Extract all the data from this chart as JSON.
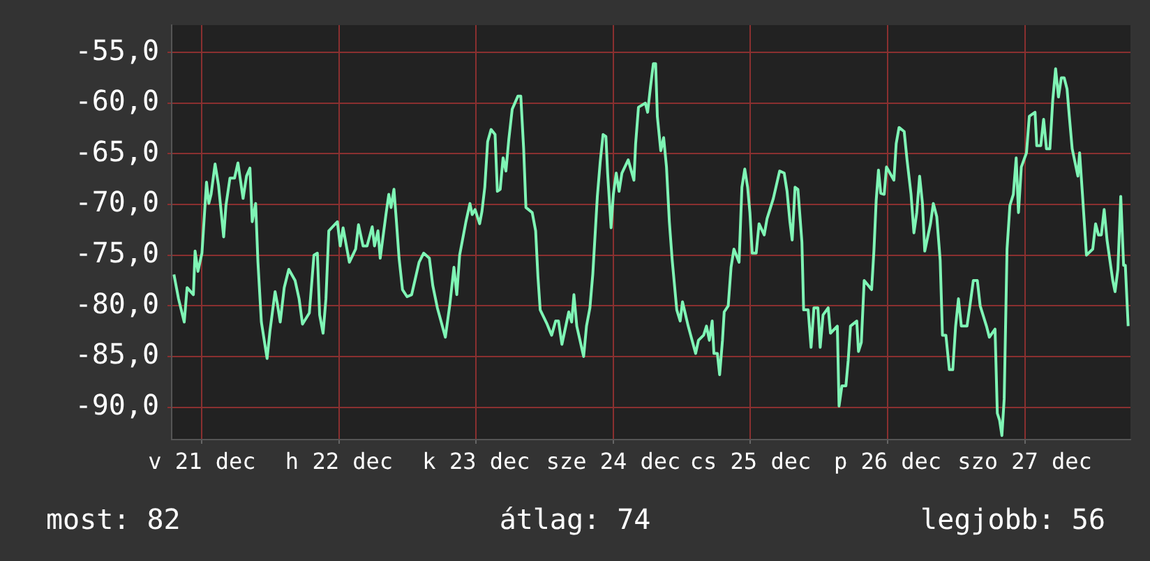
{
  "chart_data": {
    "type": "line",
    "xlim": [
      "--12-21T06:42",
      "--12-28T06:30"
    ],
    "ylim": [
      -93.2,
      -52.3
    ],
    "xticks": [
      {
        "value": "--12-21T12:00",
        "label": "v 21 dec"
      },
      {
        "value": "--12-22T12:00",
        "label": "h 22 dec"
      },
      {
        "value": "--12-23T12:00",
        "label": "k 23 dec"
      },
      {
        "value": "--12-24T12:00",
        "label": "sze 24 dec"
      },
      {
        "value": "--12-25T12:00",
        "label": "cs 25 dec"
      },
      {
        "value": "--12-26T12:00",
        "label": "p 26 dec"
      },
      {
        "value": "--12-27T12:00",
        "label": "szo 27 dec"
      }
    ],
    "yticks": [
      {
        "value": -90,
        "label": "-90,0"
      },
      {
        "value": -85,
        "label": "-85,0"
      },
      {
        "value": -80,
        "label": "-80,0"
      },
      {
        "value": -75,
        "label": "-75,0"
      },
      {
        "value": -70,
        "label": "-70,0"
      },
      {
        "value": -65,
        "label": "-65,0"
      },
      {
        "value": -60,
        "label": "-60,0"
      },
      {
        "value": -55,
        "label": "-55,0"
      }
    ],
    "grid": true,
    "legend": false,
    "marker": "none",
    "line_style": "solid",
    "annotations": [
      "most: 82",
      "átlag: 74",
      "legjobb: 56"
    ],
    "series": [
      {
        "color": "#7ff5b5",
        "x": [
          "--12-21T07:06",
          "--12-21T07:54",
          "--12-21T08:54",
          "--12-21T09:24",
          "--12-21T10:30",
          "--12-21T10:48",
          "--12-21T11:18",
          "--12-21T12:00",
          "--12-21T12:48",
          "--12-21T13:12",
          "--12-21T13:36",
          "--12-21T14:18",
          "--12-21T14:54",
          "--12-21T15:48",
          "--12-21T16:12",
          "--12-21T16:54",
          "--12-21T17:42",
          "--12-21T18:18",
          "--12-21T19:12",
          "--12-21T19:48",
          "--12-21T20:24",
          "--12-21T20:48",
          "--12-21T21:24",
          "--12-21T21:48",
          "--12-21T22:24",
          "--12-21T23:24",
          "--12-21T23:54",
          "--12-22T00:48",
          "--12-22T01:12",
          "--12-22T01:42",
          "--12-22T02:24",
          "--12-22T03:12",
          "--12-22T04:18",
          "--12-22T05:00",
          "--12-22T05:36",
          "--12-22T06:48",
          "--12-22T07:36",
          "--12-22T08:12",
          "--12-22T08:36",
          "--12-22T09:12",
          "--12-22T09:42",
          "--12-22T10:12",
          "--12-22T11:42",
          "--12-22T12:12",
          "--12-22T12:42",
          "--12-22T13:48",
          "--12-22T14:54",
          "--12-22T15:24",
          "--12-22T16:12",
          "--12-22T16:54",
          "--12-22T17:48",
          "--12-22T18:12",
          "--12-22T18:48",
          "--12-22T19:12",
          "--12-22T20:12",
          "--12-22T20:42",
          "--12-22T21:06",
          "--12-22T21:36",
          "--12-22T22:00",
          "--12-22T22:30",
          "--12-22T23:06",
          "--12-22T23:54",
          "--12-23T00:42",
          "--12-23T02:00",
          "--12-23T02:48",
          "--12-23T03:48",
          "--12-23T04:24",
          "--12-23T05:12",
          "--12-23T06:36",
          "--12-23T07:24",
          "--12-23T08:06",
          "--12-23T08:36",
          "--12-23T09:06",
          "--12-23T10:12",
          "--12-23T10:54",
          "--12-23T11:18",
          "--12-23T11:48",
          "--12-23T12:36",
          "--12-23T13:00",
          "--12-23T13:30",
          "--12-23T14:00",
          "--12-23T14:36",
          "--12-23T15:18",
          "--12-23T15:42",
          "--12-23T16:12",
          "--12-23T16:42",
          "--12-23T17:12",
          "--12-23T17:42",
          "--12-23T18:18",
          "--12-23T19:18",
          "--12-23T19:48",
          "--12-23T20:18",
          "--12-23T20:42",
          "--12-23T21:48",
          "--12-23T22:24",
          "--12-23T22:48",
          "--12-23T23:12",
          "--12-24T00:24",
          "--12-24T01:12",
          "--12-24T01:54",
          "--12-24T02:24",
          "--12-24T03:00",
          "--12-24T04:12",
          "--12-24T04:42",
          "--12-24T05:06",
          "--12-24T05:36",
          "--12-24T06:48",
          "--12-24T07:18",
          "--12-24T07:54",
          "--12-24T08:24",
          "--12-24T09:12",
          "--12-24T09:42",
          "--12-24T10:12",
          "--12-24T10:42",
          "--12-24T11:00",
          "--12-24T11:36",
          "--12-24T12:00",
          "--12-24T12:30",
          "--12-24T13:00",
          "--12-24T13:30",
          "--12-24T14:36",
          "--12-24T15:36",
          "--12-24T15:54",
          "--12-24T16:24",
          "--12-24T17:36",
          "--12-24T18:00",
          "--12-24T18:30",
          "--12-24T19:00",
          "--12-24T19:24",
          "--12-24T19:42",
          "--12-24T20:18",
          "--12-24T20:48",
          "--12-24T21:18",
          "--12-24T21:48",
          "--12-24T22:18",
          "--12-24T23:06",
          "--12-24T23:42",
          "--12-25T00:06",
          "--12-25T01:06",
          "--12-25T02:24",
          "--12-25T02:54",
          "--12-25T03:48",
          "--12-25T04:18",
          "--12-25T04:48",
          "--12-25T05:18",
          "--12-25T05:36",
          "--12-25T06:12",
          "--12-25T06:36",
          "--12-25T07:06",
          "--12-25T07:24",
          "--12-25T08:06",
          "--12-25T08:36",
          "--12-25T09:06",
          "--12-25T10:00",
          "--12-25T10:30",
          "--12-25T11:00",
          "--12-25T11:30",
          "--12-25T11:54",
          "--12-25T12:18",
          "--12-25T13:00",
          "--12-25T13:30",
          "--12-25T14:24",
          "--12-25T14:54",
          "--12-25T16:00",
          "--12-25T17:06",
          "--12-25T17:54",
          "--12-25T18:24",
          "--12-25T18:54",
          "--12-25T19:18",
          "--12-25T19:48",
          "--12-25T20:18",
          "--12-25T21:00",
          "--12-25T21:18",
          "--12-25T22:06",
          "--12-25T22:36",
          "--12-25T23:06",
          "--12-25T23:48",
          "--12-26T00:12",
          "--12-26T00:42",
          "--12-26T01:36",
          "--12-26T02:00",
          "--12-26T03:12",
          "--12-26T03:30",
          "--12-26T04:00",
          "--12-26T04:42",
          "--12-26T05:06",
          "--12-26T05:30",
          "--12-26T06:36",
          "--12-26T06:54",
          "--12-26T07:24",
          "--12-26T07:54",
          "--12-26T09:12",
          "--12-26T09:36",
          "--12-26T10:00",
          "--12-26T10:24",
          "--12-26T10:48",
          "--12-26T11:24",
          "--12-26T11:48",
          "--12-26T13:06",
          "--12-26T13:30",
          "--12-26T14:00",
          "--12-26T14:54",
          "--12-26T15:24",
          "--12-26T16:06",
          "--12-26T16:36",
          "--12-26T17:06",
          "--12-26T17:36",
          "--12-26T18:06",
          "--12-26T18:30",
          "--12-26T19:30",
          "--12-26T20:00",
          "--12-26T20:36",
          "--12-26T21:12",
          "--12-26T21:36",
          "--12-26T22:12",
          "--12-26T22:48",
          "--12-26T23:24",
          "--12-26T23:54",
          "--12-27T00:24",
          "--12-27T00:54",
          "--12-27T01:54",
          "--12-27T02:30",
          "--12-27T03:00",
          "--12-27T03:42",
          "--12-27T04:12",
          "--12-27T05:18",
          "--12-27T05:48",
          "--12-27T06:48",
          "--12-27T07:12",
          "--12-27T07:36",
          "--12-27T08:00",
          "--12-27T08:24",
          "--12-27T08:54",
          "--12-27T09:24",
          "--12-27T10:00",
          "--12-27T10:30",
          "--12-27T10:54",
          "--12-27T11:24",
          "--12-27T12:18",
          "--12-27T12:48",
          "--12-27T13:48",
          "--12-27T14:06",
          "--12-27T14:48",
          "--12-27T15:18",
          "--12-27T15:48",
          "--12-27T16:24",
          "--12-27T16:54",
          "--12-27T17:24",
          "--12-27T17:54",
          "--12-27T18:24",
          "--12-27T18:54",
          "--12-27T19:24",
          "--12-27T19:48",
          "--12-27T20:18",
          "--12-27T21:18",
          "--12-27T21:36",
          "--12-27T22:06",
          "--12-27T22:48",
          "--12-27T23:54",
          "--12-28T00:24",
          "--12-28T00:54",
          "--12-28T01:24",
          "--12-28T01:54",
          "--12-28T02:24",
          "--12-28T03:24",
          "--12-28T03:48",
          "--12-28T04:18",
          "--12-28T04:48",
          "--12-28T05:18",
          "--12-28T05:36",
          "--12-28T06:06"
        ],
        "values": [
          -76.9,
          -79.3,
          -81.6,
          -78.2,
          -78.9,
          -74.6,
          -76.6,
          -74.8,
          -67.8,
          -69.9,
          -69.0,
          -66.0,
          -68.1,
          -73.2,
          -70.1,
          -67.4,
          -67.4,
          -65.9,
          -69.4,
          -67.2,
          -66.4,
          -71.7,
          -69.9,
          -75.7,
          -81.6,
          -85.2,
          -82.5,
          -78.6,
          -79.8,
          -81.6,
          -78.2,
          -76.4,
          -77.5,
          -79.3,
          -81.8,
          -80.7,
          -75.0,
          -74.8,
          -80.9,
          -82.7,
          -79.3,
          -72.6,
          -71.7,
          -74.1,
          -72.3,
          -75.7,
          -74.4,
          -72.0,
          -74.1,
          -74.1,
          -72.2,
          -74.1,
          -72.6,
          -75.3,
          -71.0,
          -69.0,
          -70.3,
          -68.5,
          -71.4,
          -75.3,
          -78.4,
          -79.1,
          -78.9,
          -75.7,
          -74.8,
          -75.3,
          -78.0,
          -80.2,
          -83.1,
          -79.8,
          -76.2,
          -78.9,
          -75.0,
          -71.7,
          -69.9,
          -71.0,
          -70.5,
          -71.9,
          -70.7,
          -68.3,
          -63.8,
          -62.6,
          -63.1,
          -68.7,
          -68.5,
          -65.4,
          -66.7,
          -63.6,
          -60.6,
          -59.3,
          -59.3,
          -64.5,
          -70.3,
          -70.8,
          -72.6,
          -77.1,
          -80.4,
          -81.8,
          -82.9,
          -81.5,
          -81.5,
          -83.8,
          -80.6,
          -81.6,
          -78.9,
          -82.0,
          -85.0,
          -82.0,
          -80.2,
          -76.9,
          -69.2,
          -65.8,
          -63.1,
          -63.3,
          -66.9,
          -72.3,
          -69.0,
          -66.9,
          -68.7,
          -66.9,
          -65.6,
          -67.6,
          -64.0,
          -60.4,
          -60.0,
          -60.9,
          -58.4,
          -56.1,
          -56.1,
          -61.3,
          -64.7,
          -63.4,
          -66.3,
          -71.7,
          -75.5,
          -80.4,
          -81.5,
          -79.6,
          -82.0,
          -84.7,
          -83.4,
          -82.9,
          -82.0,
          -83.4,
          -81.5,
          -84.7,
          -84.7,
          -86.8,
          -83.4,
          -80.6,
          -80.0,
          -76.2,
          -74.4,
          -75.7,
          -68.3,
          -66.5,
          -68.3,
          -70.8,
          -74.8,
          -74.8,
          -71.9,
          -73.0,
          -71.4,
          -69.4,
          -66.7,
          -66.9,
          -68.7,
          -71.7,
          -73.5,
          -68.3,
          -68.5,
          -73.7,
          -80.4,
          -80.4,
          -84.1,
          -80.2,
          -80.2,
          -84.1,
          -80.9,
          -80.2,
          -82.7,
          -82.0,
          -89.9,
          -87.9,
          -87.9,
          -85.4,
          -82.0,
          -81.5,
          -84.5,
          -83.6,
          -77.5,
          -78.4,
          -74.6,
          -69.6,
          -66.6,
          -68.9,
          -69.0,
          -66.3,
          -67.6,
          -64.0,
          -62.4,
          -62.8,
          -65.6,
          -69.0,
          -72.8,
          -70.8,
          -67.2,
          -69.9,
          -74.6,
          -71.9,
          -69.9,
          -71.2,
          -75.5,
          -82.9,
          -82.9,
          -86.3,
          -86.3,
          -82.0,
          -79.3,
          -82.0,
          -82.0,
          -79.6,
          -77.5,
          -77.5,
          -80.0,
          -82.0,
          -83.1,
          -82.3,
          -90.6,
          -91.3,
          -92.8,
          -89.2,
          -74.4,
          -70.1,
          -69.0,
          -65.4,
          -70.8,
          -66.3,
          -64.9,
          -61.3,
          -60.9,
          -64.2,
          -64.2,
          -61.6,
          -64.5,
          -64.5,
          -59.7,
          -56.6,
          -59.4,
          -57.5,
          -57.5,
          -58.6,
          -61.3,
          -64.5,
          -67.2,
          -64.9,
          -69.0,
          -75.0,
          -74.4,
          -71.9,
          -73.0,
          -73.0,
          -70.5,
          -73.5,
          -77.5,
          -78.6,
          -76.4,
          -69.2,
          -76.0,
          -76.0,
          -82.0
        ]
      }
    ]
  }
}
